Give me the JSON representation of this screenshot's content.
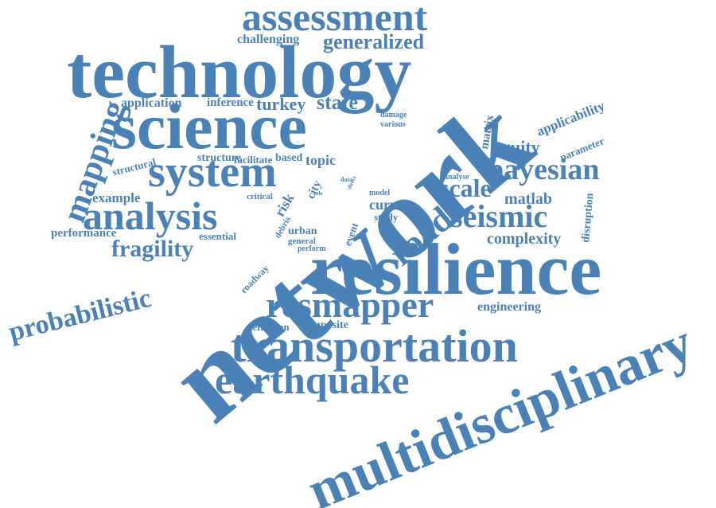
{
  "color": "#4a82b8",
  "words": [
    {
      "text": "assessment"
    },
    {
      "text": "challenging"
    },
    {
      "text": "generalized"
    },
    {
      "text": "technology"
    },
    {
      "text": "network"
    },
    {
      "text": "science"
    },
    {
      "text": "mapping"
    },
    {
      "text": "application"
    },
    {
      "text": "inference"
    },
    {
      "text": "turkey"
    },
    {
      "text": "state"
    },
    {
      "text": "damage"
    },
    {
      "text": "various"
    },
    {
      "text": "matrix"
    },
    {
      "text": "applicability"
    },
    {
      "text": "parameter"
    },
    {
      "text": "equity"
    },
    {
      "text": "bayesian"
    },
    {
      "text": "system"
    },
    {
      "text": "structural"
    },
    {
      "text": "structure"
    },
    {
      "text": "facilitate"
    },
    {
      "text": "based"
    },
    {
      "text": "topic"
    },
    {
      "text": "example"
    },
    {
      "text": "analysis"
    },
    {
      "text": "critical"
    },
    {
      "text": "risk"
    },
    {
      "text": "city"
    },
    {
      "text": "role"
    },
    {
      "text": "data"
    },
    {
      "text": "direct"
    },
    {
      "text": "analyse"
    },
    {
      "text": "scale"
    },
    {
      "text": "matlab"
    },
    {
      "text": "model"
    },
    {
      "text": "curve"
    },
    {
      "text": "study"
    },
    {
      "text": "road"
    },
    {
      "text": "seismic"
    },
    {
      "text": "disruption"
    },
    {
      "text": "performance"
    },
    {
      "text": "essential"
    },
    {
      "text": "debris"
    },
    {
      "text": "urban"
    },
    {
      "text": "general"
    },
    {
      "text": "perform"
    },
    {
      "text": "event"
    },
    {
      "text": "complexity"
    },
    {
      "text": "fragility"
    },
    {
      "text": "resilience"
    },
    {
      "text": "probabilistic"
    },
    {
      "text": "roadway"
    },
    {
      "text": "resmapper"
    },
    {
      "text": "engineering"
    },
    {
      "text": "definition"
    },
    {
      "text": "composite"
    },
    {
      "text": "transportation"
    },
    {
      "text": "earthquake"
    },
    {
      "text": "multidisciplinary"
    }
  ]
}
